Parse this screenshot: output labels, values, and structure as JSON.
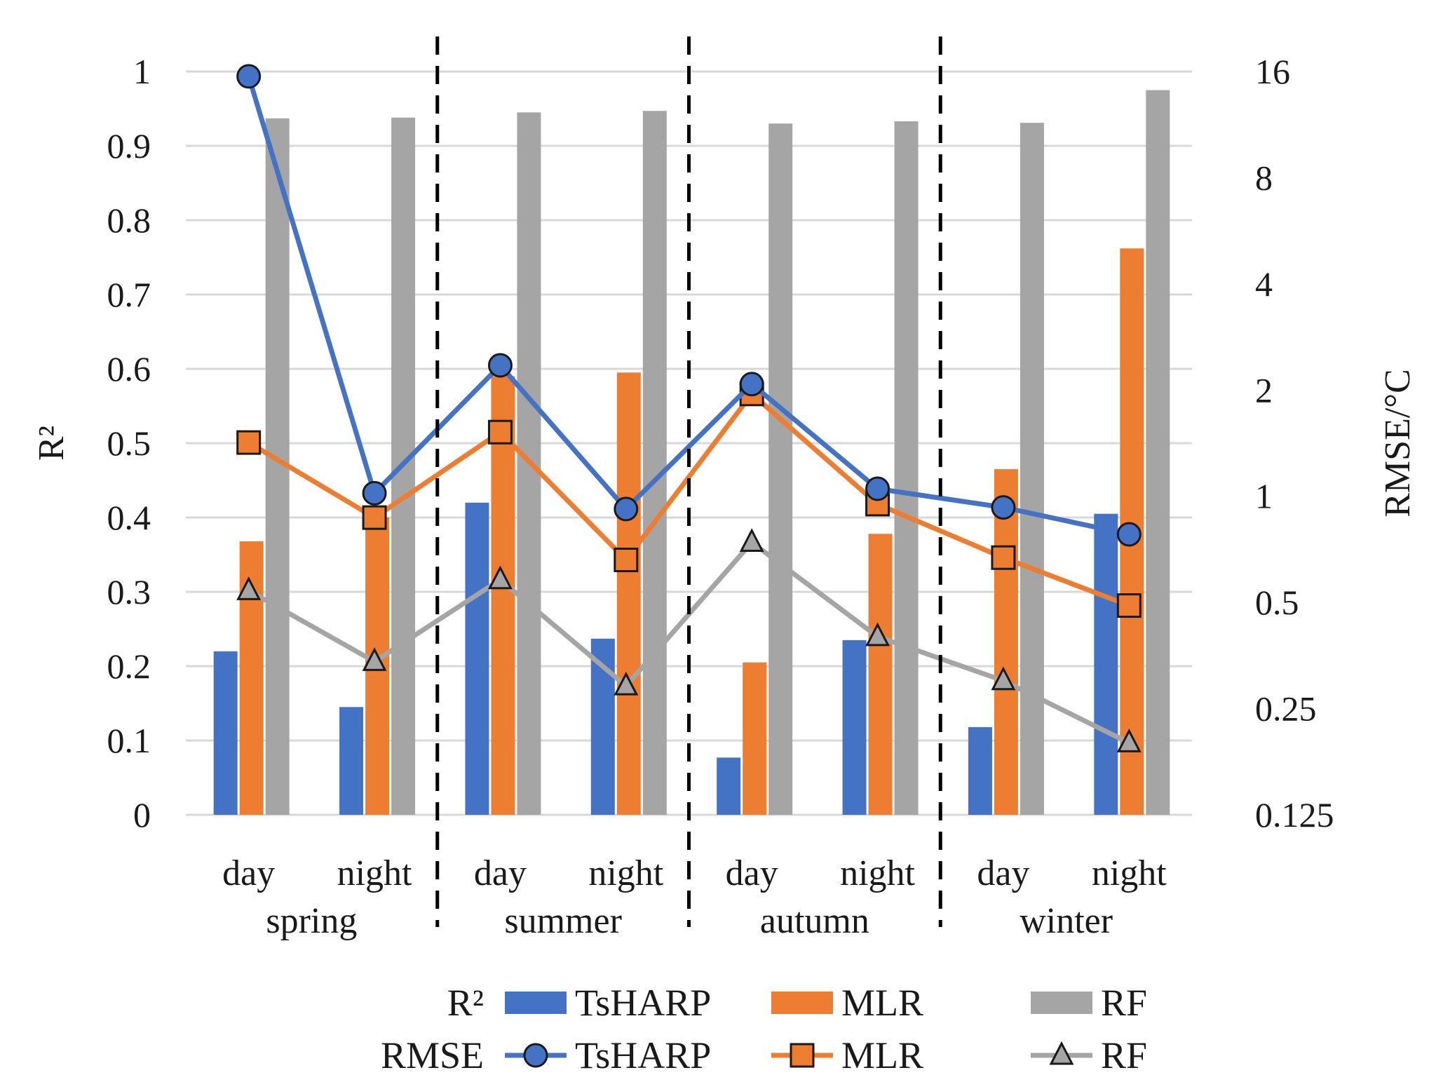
{
  "chart_data": {
    "type": "bar+line",
    "title": "",
    "left_axis": {
      "label": "R²",
      "range": [
        0,
        1
      ],
      "ticks": [
        "0",
        "0.1",
        "0.2",
        "0.3",
        "0.4",
        "0.5",
        "0.6",
        "0.7",
        "0.8",
        "0.9",
        "1"
      ]
    },
    "right_axis": {
      "label": "RMSE/°C",
      "scale": "log2",
      "range": [
        0.125,
        16
      ],
      "ticks": [
        "0.125",
        "0.25",
        "0.5",
        "1",
        "2",
        "4",
        "8",
        "16"
      ]
    },
    "grid": true,
    "categories": [
      {
        "period": "day",
        "season": "spring"
      },
      {
        "period": "night",
        "season": "spring"
      },
      {
        "period": "day",
        "season": "summer"
      },
      {
        "period": "night",
        "season": "summer"
      },
      {
        "period": "day",
        "season": "autumn"
      },
      {
        "period": "night",
        "season": "autumn"
      },
      {
        "period": "day",
        "season": "winter"
      },
      {
        "period": "night",
        "season": "winter"
      }
    ],
    "seasons": [
      "spring",
      "summer",
      "autumn",
      "winter"
    ],
    "r2_series": [
      {
        "name": "TsHARP",
        "color": "#4472c4",
        "values": [
          0.22,
          0.145,
          0.42,
          0.237,
          0.077,
          0.235,
          0.118,
          0.405
        ]
      },
      {
        "name": "MLR",
        "color": "#ed7d31",
        "values": [
          0.368,
          0.4,
          0.59,
          0.595,
          0.205,
          0.378,
          0.465,
          0.762
        ]
      },
      {
        "name": "RF",
        "color": "#a5a5a5",
        "values": [
          0.937,
          0.938,
          0.945,
          0.947,
          0.93,
          0.933,
          0.931,
          0.975
        ]
      }
    ],
    "rmse_series": [
      {
        "name": "TsHARP",
        "color": "#4472c4",
        "marker": "circle",
        "values": [
          15.5,
          1.02,
          2.35,
          0.92,
          2.08,
          1.05,
          0.93,
          0.78
        ]
      },
      {
        "name": "MLR",
        "color": "#ed7d31",
        "marker": "square",
        "values": [
          1.42,
          0.87,
          1.52,
          0.66,
          1.95,
          0.95,
          0.67,
          0.49
        ]
      },
      {
        "name": "RF",
        "color": "#a5a5a5",
        "marker": "triangle",
        "values": [
          0.54,
          0.34,
          0.58,
          0.29,
          0.74,
          0.4,
          0.3,
          0.2
        ]
      }
    ],
    "legend": {
      "placement": "bottom",
      "r2_label": "R²",
      "rmse_label": "RMSE"
    }
  }
}
